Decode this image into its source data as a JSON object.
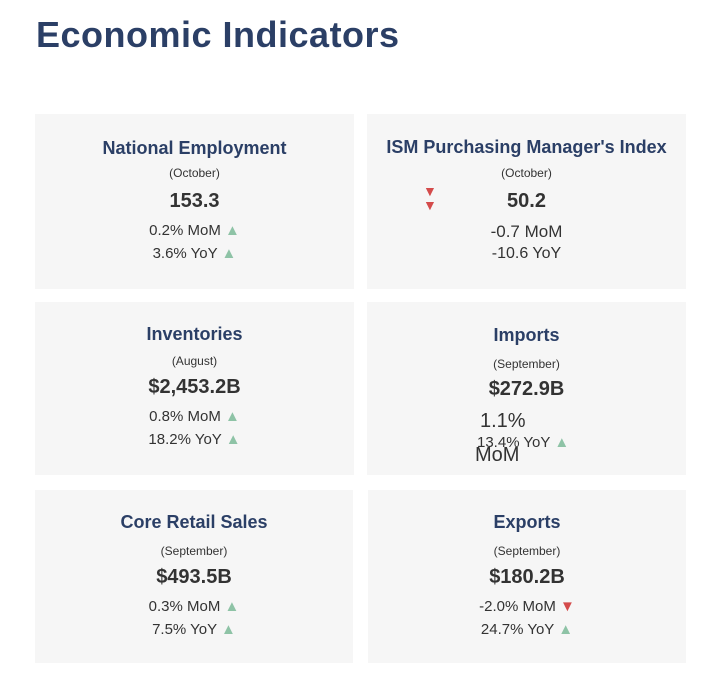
{
  "page": {
    "title": "Economic Indicators"
  },
  "cards": [
    {
      "name": "National Employment",
      "period": "(October)",
      "value": "153.3",
      "mom": "0.2% MoM",
      "yoy": "3.6% YoY",
      "mom_dir": "up",
      "yoy_dir": "up"
    },
    {
      "name": "ISM Purchasing Manager's Index",
      "period": "(October)",
      "value": "50.2",
      "mom": "-0.7 MoM",
      "yoy": "-10.6 YoY",
      "mom_dir": "down",
      "yoy_dir": "down"
    },
    {
      "name": "Inventories",
      "period": "(August)",
      "value": "$2,453.2B",
      "mom": "0.8% MoM",
      "yoy": "18.2% YoY",
      "mom_dir": "up",
      "yoy_dir": "up"
    },
    {
      "name": "Imports",
      "period": "(September)",
      "value": "$272.9B",
      "mom_num": "1.1%",
      "mom_unit": "MoM",
      "yoy": "13.4% YoY",
      "mom_dir": "up",
      "yoy_dir": "up"
    },
    {
      "name": "Core Retail Sales",
      "period": "(September)",
      "value": "$493.5B",
      "mom": "0.3% MoM",
      "yoy": "7.5% YoY",
      "mom_dir": "up",
      "yoy_dir": "up"
    },
    {
      "name": "Exports",
      "period": "(September)",
      "value": "$180.2B",
      "mom": "-2.0% MoM",
      "yoy": "24.7% YoY",
      "mom_dir": "down",
      "yoy_dir": "up"
    }
  ],
  "colors": {
    "up": "#8ec3a6",
    "down": "#d44b4b",
    "title": "#2b3f66",
    "card_bg": "#f6f6f6"
  },
  "icons": {
    "up": "triangle-up-icon",
    "down": "triangle-down-icon"
  }
}
